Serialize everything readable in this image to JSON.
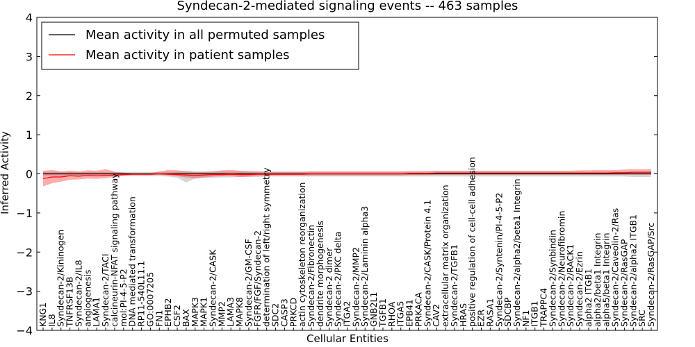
{
  "chart_data": {
    "type": "line",
    "title": "Syndecan-2-mediated signaling events -- 463 samples",
    "xlabel": "Cellular Entities",
    "ylabel": "Inferred Activity",
    "ylim": [
      -4,
      4
    ],
    "yticks": [
      -4,
      -3,
      -2,
      -1,
      0,
      1,
      2,
      3,
      4
    ],
    "ytick_labels": [
      "−4",
      "−3",
      "−2",
      "−1",
      "0",
      "1",
      "2",
      "3",
      "4"
    ],
    "grid": false,
    "legend_position": "top-left",
    "categories": [
      "KNG1",
      "IL8",
      "Syndecan-2/Kininogen",
      "TNFRSF13B",
      "Syndecan-2/IL8",
      "angiogenesis",
      "LAMA1",
      "Syndecan-2/TACI",
      "calcineurin-NFAT signaling pathway",
      "mol:PI-4-5-P2",
      "DNA mediated transformation",
      "RP11-540L11.1",
      "GO:0007205",
      "FN1",
      "EPHB2",
      "CSF2",
      "BAX",
      "MAPK3",
      "MAPK1",
      "Syndecan-2/CASK",
      "MMP2",
      "LAMA3",
      "MAPK8",
      "Syndecan-2/GM-CSF",
      "FGFR/FGF/Syndecan-2",
      "determination of left/right symmetry",
      "SDC2",
      "CASP3",
      "PRKCD",
      "actin cytoskeleton reorganization",
      "Syndecan-2/Fibronectin",
      "dendrite morphogenesis",
      "Syndecan-2 dimer",
      "Syndecan-2/PKC delta",
      "ITGA2",
      "Syndecan-2/MMP2",
      "Syndecan-2/Laminin alpha3",
      "GNB2L1",
      "TGFB1",
      "RHOA",
      "ITGA5",
      "EPB41",
      "PRKACA",
      "Syndecan-2/CASK/Protein 4.1",
      "CAV2",
      "extracellular matrix organization",
      "Syndecan-2/TGFB1",
      "HRAS",
      "positive regulation of cell-cell adhesion",
      "EZR",
      "RASA1",
      "Syndecan-2/Syntenin/PI-4-5-P2",
      "SDCBP",
      "Syndecan-2/alpha2/beta1 Integrin",
      "NF1",
      "ITGB1",
      "TRAPPC4",
      "Syndecan-2/Synbindin",
      "Syndecan-2/Neurofibromin",
      "Syndecan-2/RACK1",
      "Syndecan-2/Ezrin",
      "alpha2 ITGB1",
      "alpha2/beta1 Integrin",
      "alpha5/beta1 Integrin",
      "Syndecan-2/Caveolin-2/Ras",
      "Syndecan-2/RasGAP",
      "Syndecan-2/alpha2 ITGB1",
      "SRC",
      "Syndecan-2/RasGAP/Src"
    ],
    "series": [
      {
        "name": "Mean activity in all permuted samples",
        "color": "#000000",
        "values": [
          0.0,
          0.0,
          0.0,
          0.0,
          0.0,
          0.0,
          0.0,
          0.0,
          0.0,
          0.0,
          0.0,
          0.0,
          0.0,
          0.0,
          0.0,
          0.0,
          0.0,
          0.0,
          0.0,
          0.0,
          0.0,
          0.0,
          0.0,
          0.0,
          0.0,
          0.0,
          0.0,
          0.0,
          0.0,
          0.0,
          0.0,
          0.0,
          0.0,
          0.0,
          0.0,
          0.0,
          0.0,
          0.0,
          0.0,
          0.0,
          0.0,
          0.0,
          0.0,
          0.0,
          0.0,
          0.0,
          0.0,
          0.0,
          0.0,
          0.0,
          0.0,
          0.0,
          0.0,
          0.0,
          0.0,
          0.0,
          0.0,
          0.0,
          0.0,
          0.0,
          0.0,
          0.0,
          0.0,
          0.0,
          0.0,
          0.0,
          0.0,
          0.0,
          0.0
        ],
        "lower": [
          -0.05,
          -0.05,
          -0.05,
          -0.05,
          -0.05,
          -0.05,
          -0.05,
          -0.05,
          -0.05,
          -0.05,
          -0.06,
          -0.06,
          -0.06,
          -0.06,
          -0.07,
          -0.1,
          -0.22,
          -0.12,
          -0.1,
          -0.1,
          -0.09,
          -0.09,
          -0.08,
          -0.08,
          -0.08,
          -0.07,
          -0.07,
          -0.07,
          -0.07,
          -0.07,
          -0.07,
          -0.07,
          -0.07,
          -0.07,
          -0.07,
          -0.07,
          -0.07,
          -0.07,
          -0.07,
          -0.07,
          -0.07,
          -0.07,
          -0.07,
          -0.07,
          -0.07,
          -0.07,
          -0.07,
          -0.07,
          -0.07,
          -0.07,
          -0.07,
          -0.07,
          -0.07,
          -0.07,
          -0.07,
          -0.07,
          -0.07,
          -0.07,
          -0.07,
          -0.07,
          -0.07,
          -0.07,
          -0.07,
          -0.07,
          -0.07,
          -0.07,
          -0.08,
          -0.08,
          -0.08
        ],
        "upper": [
          0.05,
          0.05,
          0.05,
          0.05,
          0.05,
          0.05,
          0.05,
          0.05,
          0.05,
          0.05,
          0.05,
          0.05,
          0.05,
          0.05,
          0.05,
          0.06,
          0.08,
          0.06,
          0.06,
          0.06,
          0.06,
          0.06,
          0.06,
          0.06,
          0.06,
          0.06,
          0.06,
          0.06,
          0.06,
          0.06,
          0.06,
          0.06,
          0.06,
          0.06,
          0.06,
          0.06,
          0.06,
          0.06,
          0.06,
          0.06,
          0.06,
          0.06,
          0.06,
          0.06,
          0.06,
          0.06,
          0.06,
          0.06,
          0.06,
          0.06,
          0.06,
          0.06,
          0.06,
          0.06,
          0.06,
          0.06,
          0.06,
          0.06,
          0.06,
          0.06,
          0.06,
          0.06,
          0.06,
          0.06,
          0.06,
          0.06,
          0.06,
          0.06,
          0.06
        ]
      },
      {
        "name": "Mean activity in patient samples",
        "color": "#ff0000",
        "values": [
          -0.12,
          -0.08,
          -0.08,
          -0.05,
          -0.06,
          -0.04,
          -0.05,
          -0.04,
          -0.03,
          -0.02,
          -0.01,
          -0.01,
          -0.01,
          0.0,
          -0.01,
          -0.02,
          -0.03,
          -0.04,
          -0.03,
          -0.02,
          -0.02,
          -0.01,
          -0.02,
          -0.02,
          -0.01,
          -0.01,
          -0.01,
          -0.01,
          -0.01,
          -0.01,
          0.0,
          0.0,
          0.0,
          0.0,
          0.0,
          0.0,
          0.0,
          0.0,
          0.0,
          0.0,
          0.0,
          0.01,
          0.01,
          0.01,
          0.02,
          0.02,
          0.02,
          0.02,
          0.02,
          0.02,
          0.02,
          0.02,
          0.02,
          0.02,
          0.02,
          0.02,
          0.02,
          0.02,
          0.02,
          0.02,
          0.02,
          0.02,
          0.02,
          0.02,
          0.03,
          0.03,
          0.04,
          0.04,
          0.04
        ],
        "lower": [
          -0.32,
          -0.24,
          -0.2,
          -0.15,
          -0.14,
          -0.12,
          -0.13,
          -0.11,
          -0.08,
          -0.05,
          -0.03,
          -0.03,
          -0.03,
          -0.02,
          -0.04,
          -0.06,
          -0.09,
          -0.12,
          -0.09,
          -0.07,
          -0.06,
          -0.06,
          -0.08,
          -0.07,
          -0.05,
          -0.05,
          -0.04,
          -0.04,
          -0.04,
          -0.04,
          -0.04,
          -0.04,
          -0.04,
          -0.04,
          -0.04,
          -0.04,
          -0.04,
          -0.04,
          -0.04,
          -0.04,
          -0.04,
          -0.03,
          -0.03,
          -0.03,
          -0.02,
          -0.02,
          -0.02,
          -0.02,
          -0.02,
          -0.02,
          -0.02,
          -0.02,
          -0.02,
          -0.02,
          -0.02,
          -0.02,
          -0.02,
          -0.02,
          -0.02,
          -0.02,
          -0.02,
          -0.02,
          -0.02,
          -0.02,
          -0.02,
          -0.02,
          -0.02,
          -0.02,
          -0.02
        ],
        "upper": [
          0.08,
          0.1,
          0.06,
          0.08,
          0.06,
          0.09,
          0.08,
          0.12,
          0.06,
          0.03,
          0.02,
          0.02,
          0.02,
          0.06,
          0.1,
          0.09,
          0.06,
          0.05,
          0.05,
          0.06,
          0.09,
          0.1,
          0.08,
          0.07,
          0.06,
          0.05,
          0.05,
          0.05,
          0.05,
          0.05,
          0.06,
          0.06,
          0.06,
          0.06,
          0.06,
          0.06,
          0.06,
          0.06,
          0.06,
          0.06,
          0.06,
          0.07,
          0.07,
          0.07,
          0.08,
          0.08,
          0.08,
          0.08,
          0.08,
          0.08,
          0.08,
          0.08,
          0.08,
          0.08,
          0.08,
          0.08,
          0.08,
          0.08,
          0.08,
          0.08,
          0.09,
          0.09,
          0.1,
          0.1,
          0.1,
          0.11,
          0.12,
          0.12,
          0.12
        ]
      }
    ]
  }
}
